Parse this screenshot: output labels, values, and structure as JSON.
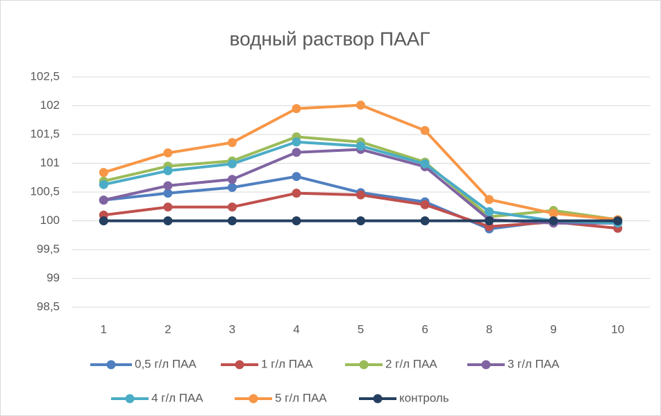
{
  "chart_data": {
    "type": "line",
    "title": "водный раствор ПААГ",
    "categories": [
      "1",
      "2",
      "3",
      "4",
      "5",
      "6",
      "8",
      "9",
      "10"
    ],
    "series": [
      {
        "name": "0,5 г/л ПАА",
        "color": "#4f7fc0",
        "values": [
          100.36,
          100.48,
          100.58,
          100.77,
          100.49,
          100.33,
          99.86,
          100.0,
          99.98
        ]
      },
      {
        "name": "1 г/л ПАА",
        "color": "#c0504d",
        "values": [
          100.1,
          100.24,
          100.24,
          100.48,
          100.45,
          100.28,
          99.9,
          99.98,
          99.87
        ]
      },
      {
        "name": "2 г/л ПАА",
        "color": "#9bbb59",
        "values": [
          100.69,
          100.95,
          101.04,
          101.46,
          101.37,
          101.02,
          100.07,
          100.18,
          100.02
        ]
      },
      {
        "name": "3 г/л ПАА",
        "color": "#8064a2",
        "values": [
          100.36,
          100.61,
          100.72,
          101.19,
          101.24,
          100.94,
          100.02,
          99.96,
          99.96
        ]
      },
      {
        "name": "4 г/л ПАА",
        "color": "#4bacc6",
        "values": [
          100.63,
          100.87,
          100.99,
          101.37,
          101.3,
          100.99,
          100.16,
          100.0,
          99.96
        ]
      },
      {
        "name": "5 г/л ПАА",
        "color": "#f79646",
        "values": [
          100.84,
          101.18,
          101.36,
          101.95,
          102.01,
          101.57,
          100.37,
          100.13,
          100.02
        ]
      },
      {
        "name": "контроль",
        "color": "#243f60",
        "values": [
          100,
          100,
          100,
          100,
          100,
          100,
          100,
          100,
          100
        ]
      }
    ],
    "ylim": [
      98.5,
      102.5
    ],
    "yticks": [
      {
        "value": 98.5,
        "label": "98,5"
      },
      99,
      {
        "value": 99.5,
        "label": "99,5"
      },
      100,
      {
        "value": 100.5,
        "label": "100,5"
      },
      101,
      {
        "value": 101.5,
        "label": "101,5"
      },
      102,
      {
        "value": 102.5,
        "label": "102,5"
      }
    ],
    "grid": true
  }
}
